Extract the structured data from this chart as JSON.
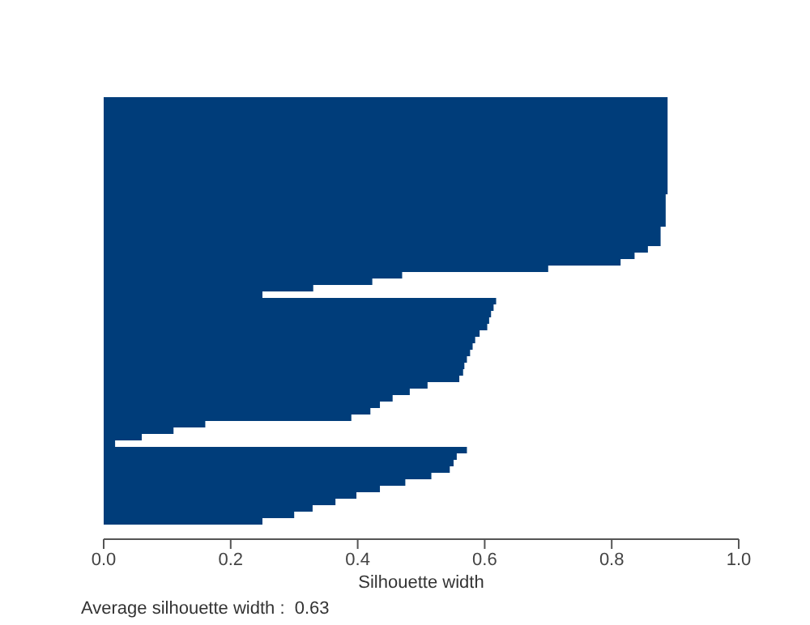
{
  "chart_data": {
    "type": "bar",
    "orientation": "horizontal",
    "xlabel": "Silhouette width",
    "annotations": [
      "Average silhouette width :  0.63"
    ],
    "categories": [
      null,
      null,
      null,
      null,
      null,
      null,
      null,
      null,
      null,
      null,
      null,
      null,
      null,
      null,
      null,
      null,
      null,
      null,
      null,
      null,
      null,
      null,
      null,
      null,
      null,
      null,
      null,
      null,
      null,
      null,
      null,
      null,
      null,
      null,
      null,
      null,
      null,
      null,
      null,
      null,
      null,
      null,
      null,
      null,
      null,
      null,
      null,
      null,
      null,
      null,
      null,
      null,
      null,
      null,
      null,
      null,
      null,
      null,
      null,
      null,
      null,
      null,
      null,
      null,
      null,
      null
    ],
    "values": [
      0.888,
      0.888,
      0.888,
      0.888,
      0.888,
      0.888,
      0.888,
      0.888,
      0.888,
      0.888,
      0.888,
      0.888,
      0.888,
      0.888,
      0.888,
      0.885,
      0.885,
      0.885,
      0.885,
      0.885,
      0.877,
      0.877,
      0.877,
      0.857,
      0.836,
      0.814,
      0.7,
      0.47,
      0.423,
      0.33,
      0.25,
      0.618,
      0.614,
      0.61,
      0.607,
      0.604,
      0.592,
      0.585,
      0.581,
      0.577,
      0.572,
      0.568,
      0.566,
      0.56,
      0.51,
      0.482,
      0.455,
      0.435,
      0.42,
      0.39,
      0.16,
      0.11,
      0.06,
      0.018,
      0.572,
      0.556,
      0.551,
      0.545,
      0.516,
      0.475,
      0.435,
      0.398,
      0.365,
      0.329,
      0.3,
      0.25
    ],
    "color": "#003d7a",
    "xlim": [
      0,
      1
    ],
    "xticks": [
      {
        "value": 0,
        "label": "0.0"
      },
      {
        "value": 0.2,
        "label": "0.2"
      },
      {
        "value": 0.4,
        "label": "0.4"
      },
      {
        "value": 0.6,
        "label": "0.6"
      },
      {
        "value": 0.8,
        "label": "0.8"
      },
      {
        "value": 1,
        "label": "1.0"
      }
    ],
    "tick_labels": "x"
  }
}
